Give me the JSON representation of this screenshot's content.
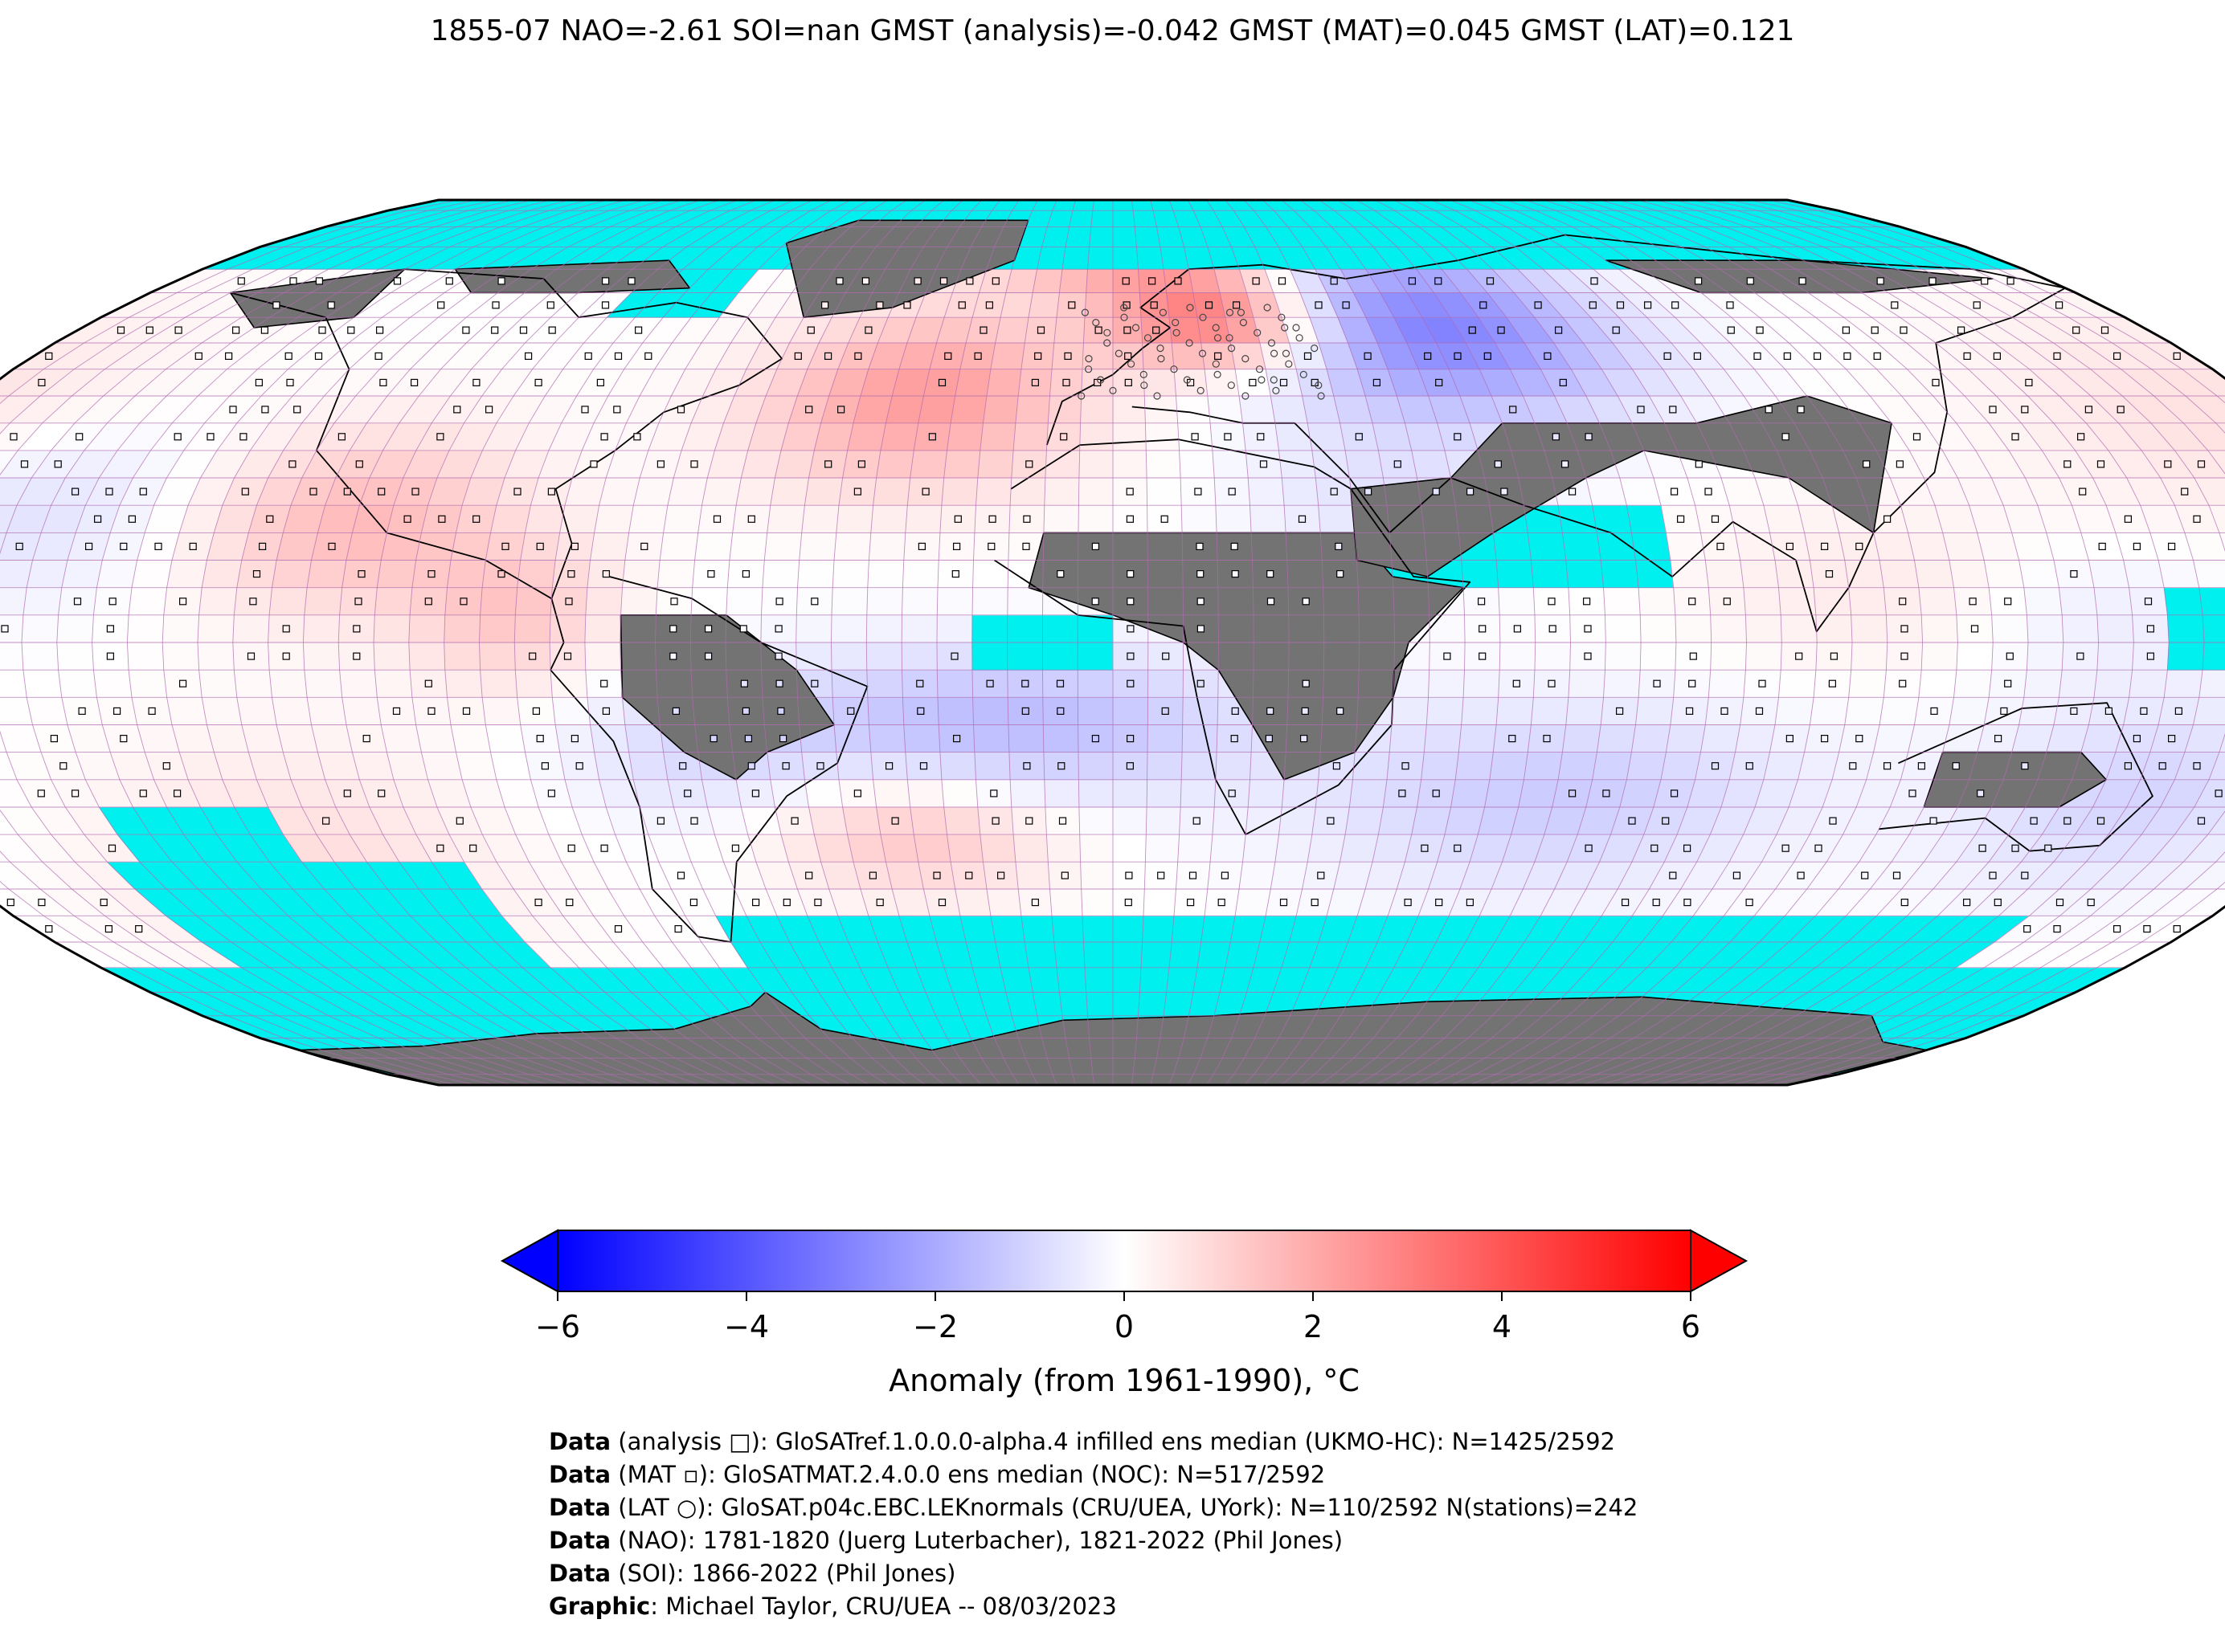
{
  "title": "1855-07 NAO=-2.61 SOI=nan GMST (analysis)=-0.042 GMST (MAT)=0.045 GMST (LAT)=0.121",
  "colorbar": {
    "label": "Anomaly (from 1961-1990), °C",
    "min": -6,
    "max": 6,
    "ticks": [
      "−6",
      "−4",
      "−2",
      "0",
      "2",
      "4",
      "6"
    ],
    "colors": {
      "low": "#0000ff",
      "mid": "#ffffff",
      "high": "#ff0000"
    }
  },
  "map": {
    "projection": "Robinson",
    "colors": {
      "ocean_missing": "#00f0f0",
      "land_missing": "#737373",
      "grid": "#b06bb0"
    },
    "anomaly_regions_celsius": [
      {
        "region": "Northern Europe / Scandinavia",
        "value": 3.5
      },
      {
        "region": "Western Russia / Siberia",
        "value": -3.0
      },
      {
        "region": "North Atlantic",
        "value": 2.2
      },
      {
        "region": "Eastern Pacific",
        "value": 1.6
      },
      {
        "region": "Equatorial Atlantic",
        "value": -1.6
      },
      {
        "region": "South Indian Ocean",
        "value": -1.2
      },
      {
        "region": "North Pacific",
        "value": 0.8
      },
      {
        "region": "Western Pacific",
        "value": -0.6
      }
    ]
  },
  "credits": [
    {
      "bold": "Data",
      "text": " (analysis □): GloSATref.1.0.0.0-alpha.4 infilled ens median (UKMO-HC): N=1425/2592"
    },
    {
      "bold": "Data",
      "text": " (MAT ▫): GloSATMAT.2.4.0.0 ens median (NOC): N=517/2592"
    },
    {
      "bold": "Data",
      "text": " (LAT ○): GloSAT.p04c.EBC.LEKnormals (CRU/UEA, UYork): N=110/2592 N(stations)=242"
    },
    {
      "bold": "Data",
      "text": " (NAO): 1781-1820 (Juerg Luterbacher), 1821-2022 (Phil Jones)"
    },
    {
      "bold": "Data",
      "text": " (SOI): 1866-2022 (Phil Jones)"
    },
    {
      "bold": "Graphic",
      "text": ": Michael Taylor, CRU/UEA -- 08/03/2023"
    }
  ]
}
